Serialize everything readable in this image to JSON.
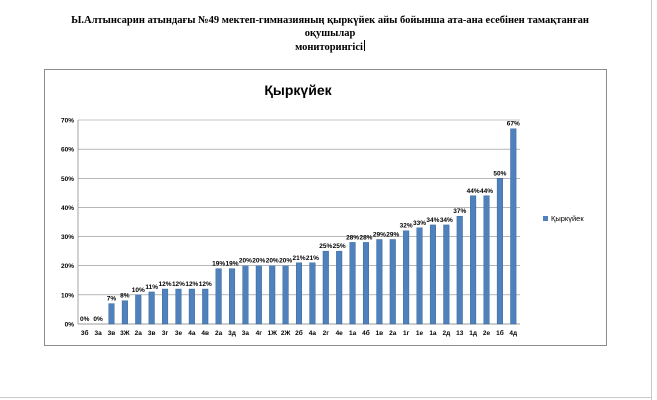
{
  "document": {
    "title_line1": "Ы.Алтынсарин атындағы №49 мектеп-гимназияның  қыркүйек айы бойынша ата-ана есебінен  тамақтанған оқушылар",
    "title_line2": "мониторингісі"
  },
  "chart_data": {
    "type": "bar",
    "title": "Қыркүйек",
    "categories": [
      "3б",
      "3а",
      "3в",
      "3Ж",
      "2а",
      "3в",
      "3г",
      "3е",
      "4а",
      "4в",
      "2а",
      "3д",
      "3а",
      "4г",
      "1Ж",
      "2Ж",
      "2б",
      "4а",
      "2г",
      "4е",
      "1а",
      "4б",
      "1в",
      "2а",
      "1г",
      "1е",
      "1а",
      "2д",
      "13",
      "1д",
      "2е",
      "1б",
      "4д"
    ],
    "values": [
      0,
      0,
      7,
      8,
      10,
      11,
      12,
      12,
      12,
      12,
      19,
      19,
      20,
      20,
      20,
      20,
      21,
      21,
      25,
      25,
      28,
      28,
      29,
      29,
      32,
      33,
      34,
      34,
      37,
      44,
      44,
      50,
      67
    ],
    "value_labels": [
      "0%",
      "0%",
      "7%",
      "8%",
      "10%",
      "11%",
      "12%",
      "12%",
      "12%",
      "12%",
      "19%",
      "19%",
      "20%",
      "20%",
      "20%",
      "20%",
      "21%",
      "21%",
      "25%",
      "25%",
      "28%",
      "28%",
      "29%",
      "29%",
      "32%",
      "33%",
      "34%",
      "34%",
      "37%",
      "44%",
      "44%",
      "50%",
      "67%"
    ],
    "ylim": [
      0,
      70
    ],
    "y_ticks": [
      "0%",
      "10%",
      "20%",
      "30%",
      "40%",
      "50%",
      "60%",
      "70%"
    ],
    "legend": {
      "label": "Қыркүйек",
      "position": "right"
    },
    "grid": true,
    "colors": {
      "bar": "#4f81bd",
      "bar_edge": "#2c5a8f",
      "grid": "#8c8c8c",
      "legend_swatch": "#4f81bd"
    }
  }
}
